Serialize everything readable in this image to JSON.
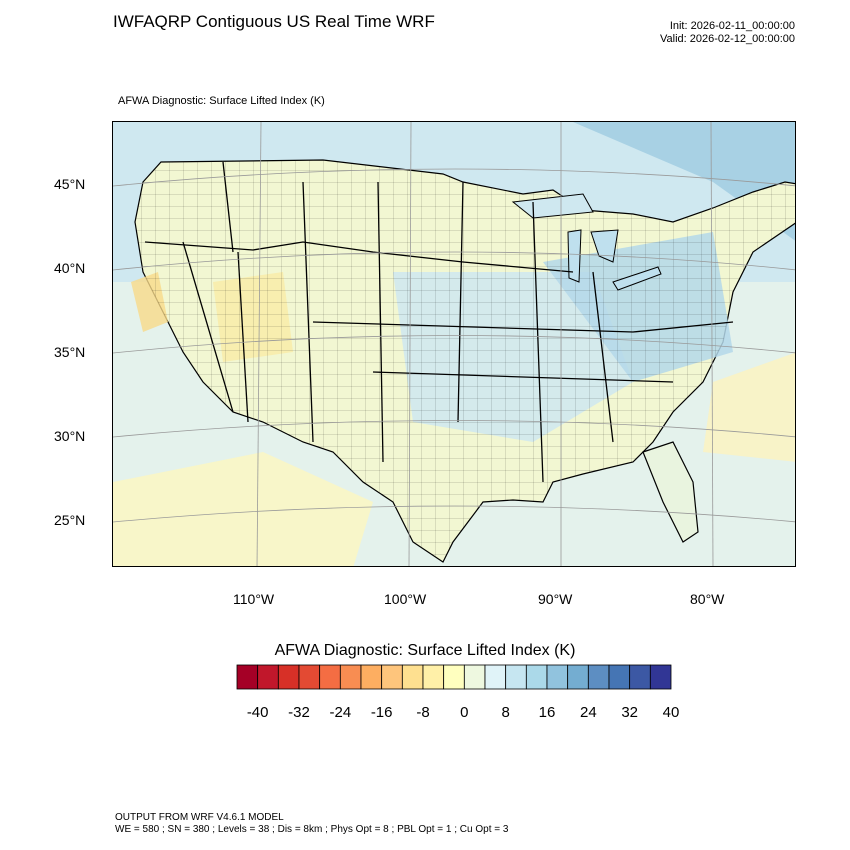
{
  "header": {
    "title": "IWFAQRP Contiguous US Real Time WRF",
    "init": "Init: 2026-02-11_00:00:00",
    "valid": "Valid: 2026-02-12_00:00:00",
    "subtitle": "AFWA Diagnostic: Surface Lifted Index   (K)"
  },
  "map": {
    "lat_labels": [
      "45°N",
      "40°N",
      "35°N",
      "30°N",
      "25°N"
    ],
    "lon_labels": [
      "110°W",
      "100°W",
      "90°W",
      "80°W"
    ]
  },
  "colorbar": {
    "title": "AFWA Diagnostic: Surface Lifted Index  (K)",
    "tick_labels": [
      "-40",
      "-32",
      "-24",
      "-16",
      "-8",
      "0",
      "8",
      "16",
      "24",
      "32",
      "40"
    ],
    "colors": [
      "#a50026",
      "#c1172b",
      "#d73027",
      "#e34a33",
      "#f46d43",
      "#f88d52",
      "#fdae61",
      "#fec57c",
      "#fee090",
      "#fff0a8",
      "#ffffbf",
      "#eef8e0",
      "#e0f3f8",
      "#c6e6f1",
      "#abd9e9",
      "#91c3de",
      "#74add1",
      "#5d8ec2",
      "#4575b4",
      "#3c58a4",
      "#313695"
    ]
  },
  "footer": {
    "line1": "OUTPUT FROM WRF V4.6.1 MODEL",
    "line2": "WE = 580 ; SN = 380 ; Levels = 38 ; Dis = 8km ; Phys Opt = 8 ; PBL Opt = 1 ; Cu Opt = 3"
  }
}
